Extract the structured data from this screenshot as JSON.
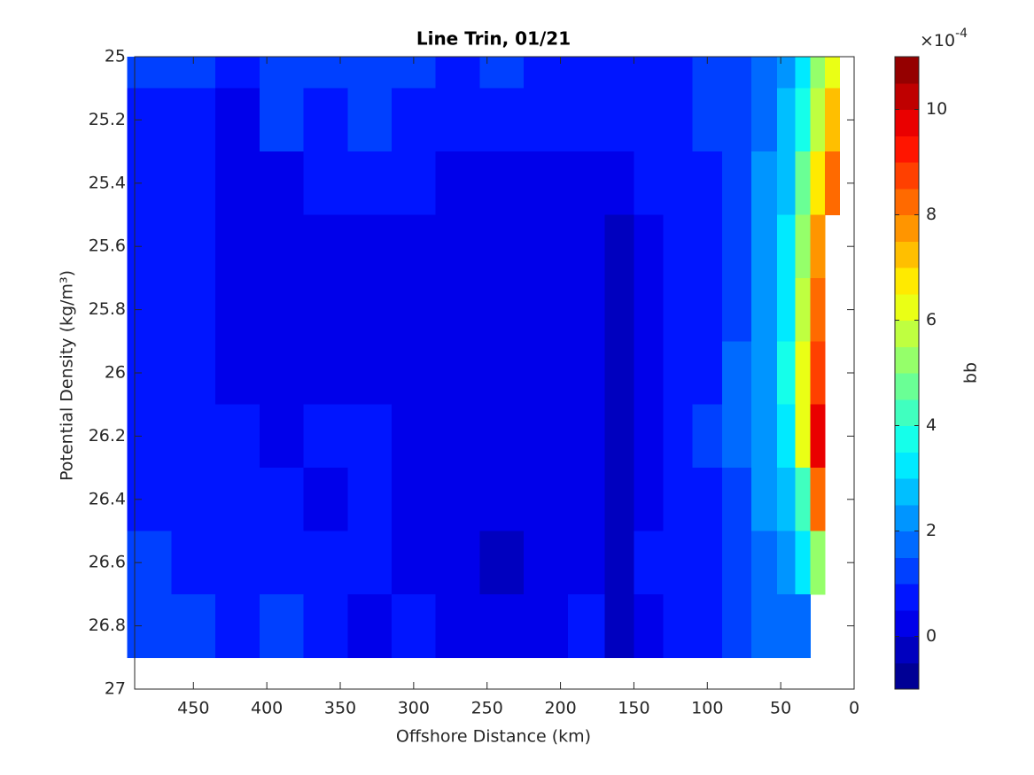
{
  "chart_data": {
    "type": "filled-contour",
    "title": "Line Trin, 01/21",
    "xlabel": "Offshore Distance (km)",
    "ylabel": "Potential Density (kg/m³)",
    "colorbar_label": "bb",
    "colorbar_exponent": {
      "base": "×10",
      "power": "-4"
    },
    "colormap": "jet",
    "levels": 24,
    "clim": [
      -1,
      11
    ],
    "cticks": [
      0,
      2,
      4,
      6,
      8,
      10
    ],
    "xlim": [
      490,
      0
    ],
    "xticks": [
      450,
      400,
      350,
      300,
      250,
      200,
      150,
      100,
      50,
      0
    ],
    "ylim": [
      27,
      25
    ],
    "yticks": [
      25,
      25.2,
      25.4,
      25.6,
      25.8,
      26,
      26.2,
      26.4,
      26.6,
      26.8,
      27
    ],
    "x": [
      480,
      450,
      420,
      390,
      360,
      330,
      300,
      270,
      240,
      210,
      180,
      160,
      140,
      120,
      100,
      80,
      60,
      45,
      35,
      25,
      15
    ],
    "y": [
      25.0,
      25.2,
      25.4,
      25.6,
      25.8,
      26.0,
      26.2,
      26.4,
      26.6,
      26.8
    ],
    "z": [
      [
        1.2,
        1.2,
        0.7,
        1.2,
        1.2,
        1.2,
        1.2,
        0.6,
        1.0,
        0.6,
        0.7,
        0.7,
        0.7,
        0.9,
        1.2,
        1.3,
        1.7,
        2.3,
        3.2,
        5.0,
        6.0
      ],
      [
        0.7,
        0.7,
        0.4,
        1.0,
        0.8,
        1.0,
        0.6,
        0.5,
        0.5,
        0.5,
        0.5,
        0.5,
        0.6,
        0.7,
        1.0,
        1.3,
        1.8,
        2.6,
        3.8,
        5.5,
        7.0
      ],
      [
        0.7,
        0.7,
        0.4,
        0.4,
        0.5,
        0.8,
        0.5,
        0.4,
        0.4,
        0.4,
        0.4,
        0.4,
        0.5,
        0.6,
        0.9,
        1.3,
        2.0,
        2.8,
        4.5,
        6.5,
        8.0
      ],
      [
        0.7,
        0.7,
        0.3,
        0.3,
        0.4,
        0.4,
        0.4,
        0.3,
        0.3,
        0.3,
        0.2,
        -0.2,
        0.3,
        0.6,
        0.9,
        1.3,
        2.0,
        3.0,
        5.0,
        7.5,
        null
      ],
      [
        0.7,
        0.7,
        0.3,
        0.3,
        0.3,
        0.4,
        0.4,
        0.3,
        0.3,
        0.3,
        0.2,
        -0.3,
        0.3,
        0.6,
        0.9,
        1.4,
        2.2,
        3.3,
        5.5,
        8.0,
        null
      ],
      [
        0.7,
        0.7,
        0.4,
        0.3,
        0.3,
        0.4,
        0.3,
        0.3,
        0.3,
        0.3,
        0.2,
        -0.2,
        0.3,
        0.6,
        0.9,
        1.5,
        2.4,
        3.5,
        6.0,
        8.5,
        null
      ],
      [
        0.7,
        0.7,
        0.7,
        0.3,
        0.6,
        0.6,
        0.3,
        0.3,
        0.3,
        0.3,
        0.3,
        -0.1,
        0.4,
        0.7,
        1.0,
        1.5,
        2.2,
        3.0,
        6.0,
        9.5,
        null
      ],
      [
        0.8,
        0.7,
        0.7,
        0.6,
        0.4,
        0.6,
        0.4,
        0.3,
        0.3,
        0.3,
        0.3,
        -0.1,
        0.4,
        0.8,
        0.9,
        1.3,
        2.0,
        2.5,
        4.0,
        8.0,
        null
      ],
      [
        1.2,
        0.8,
        0.8,
        0.8,
        0.8,
        0.8,
        0.3,
        0.3,
        -0.1,
        0.3,
        0.4,
        -0.1,
        0.5,
        0.6,
        0.8,
        1.2,
        1.6,
        2.0,
        3.0,
        5.0,
        null
      ],
      [
        1.2,
        1.2,
        0.8,
        1.2,
        0.8,
        0.2,
        0.5,
        0.4,
        0.4,
        0.4,
        0.7,
        -0.1,
        0.3,
        0.7,
        0.7,
        1.2,
        1.5,
        1.5,
        1.5,
        null,
        null
      ]
    ]
  }
}
